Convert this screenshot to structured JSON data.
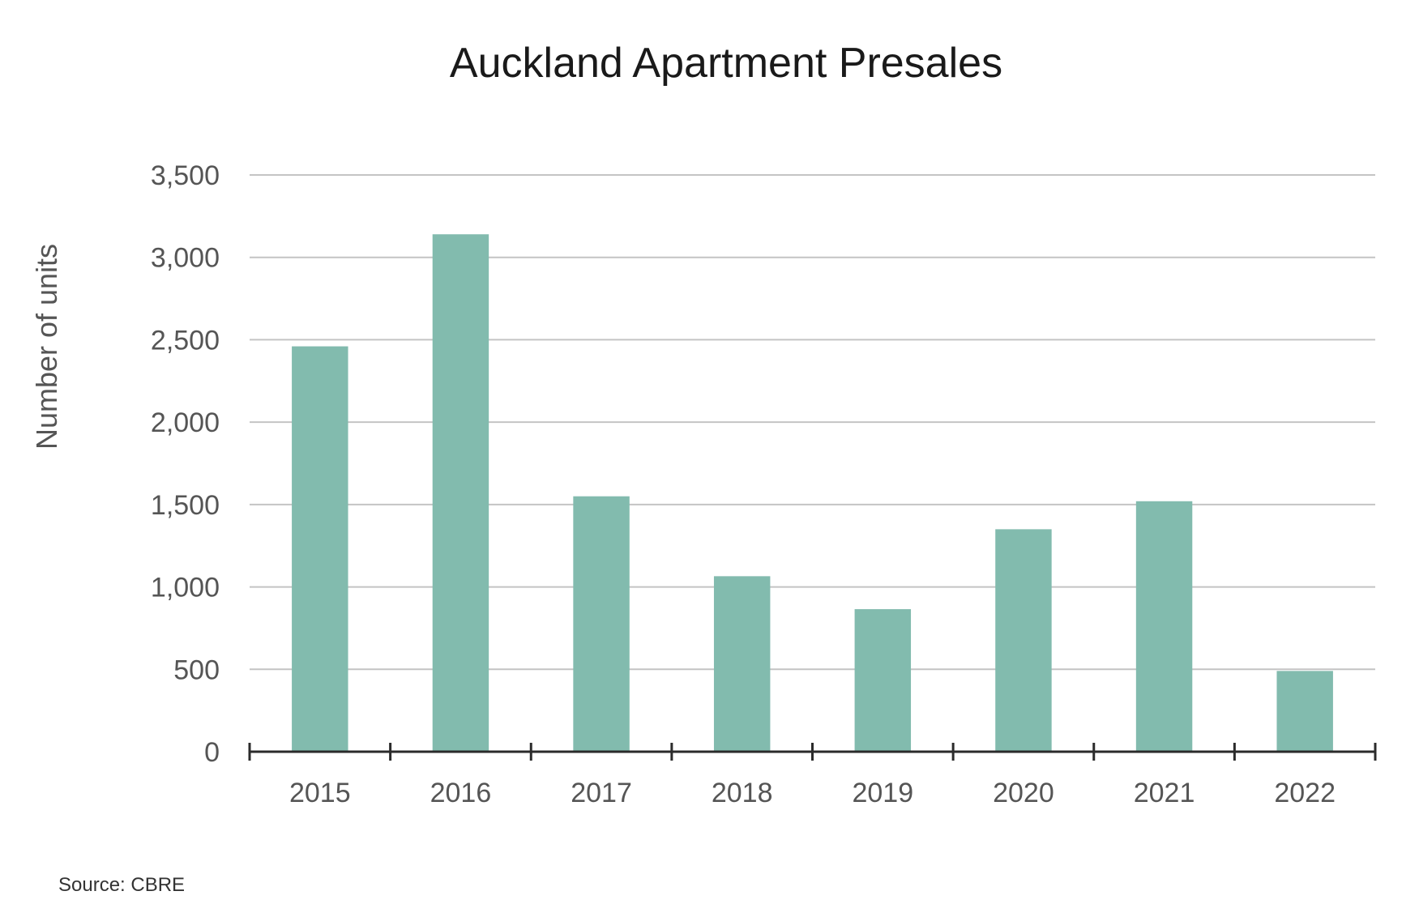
{
  "chart_data": {
    "type": "bar",
    "title": "Auckland Apartment Presales",
    "xlabel": "",
    "ylabel": "Number of units",
    "categories": [
      "2015",
      "2016",
      "2017",
      "2018",
      "2019",
      "2020",
      "2021",
      "2022"
    ],
    "values": [
      2460,
      3140,
      1550,
      1065,
      865,
      1350,
      1520,
      490
    ],
    "ylim": [
      0,
      3500
    ],
    "yticks": [
      0,
      500,
      1000,
      1500,
      2000,
      2500,
      3000,
      3500
    ],
    "ytick_labels": [
      "0",
      "500",
      "1,000",
      "1,500",
      "2,000",
      "2,500",
      "3,000",
      "3,500"
    ],
    "grid": true,
    "legend": "none",
    "bar_color": "#82bbae",
    "source": "Source: CBRE"
  }
}
